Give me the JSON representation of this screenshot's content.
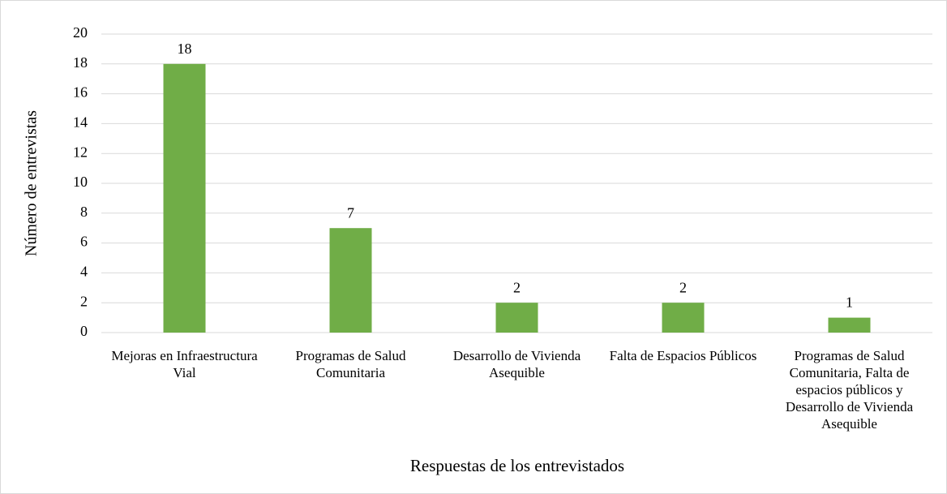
{
  "chart_data": {
    "type": "bar",
    "categories": [
      "Mejoras en Infraestructura Vial",
      "Programas de Salud Comunitaria",
      "Desarrollo de Vivienda Asequible",
      "Falta de Espacios Públicos",
      "Programas de Salud Comunitaria, Falta de espacios públicos y Desarrollo de Vivienda Asequible"
    ],
    "values": [
      18,
      7,
      2,
      2,
      1
    ],
    "color": "#70ad47",
    "ylim": [
      0,
      20
    ],
    "yticks": [
      0,
      2,
      4,
      6,
      8,
      10,
      12,
      14,
      16,
      18,
      20
    ],
    "grid": true,
    "x_label": "Respuestas de los entrevistados",
    "y_label": "Número de entrevistas"
  }
}
